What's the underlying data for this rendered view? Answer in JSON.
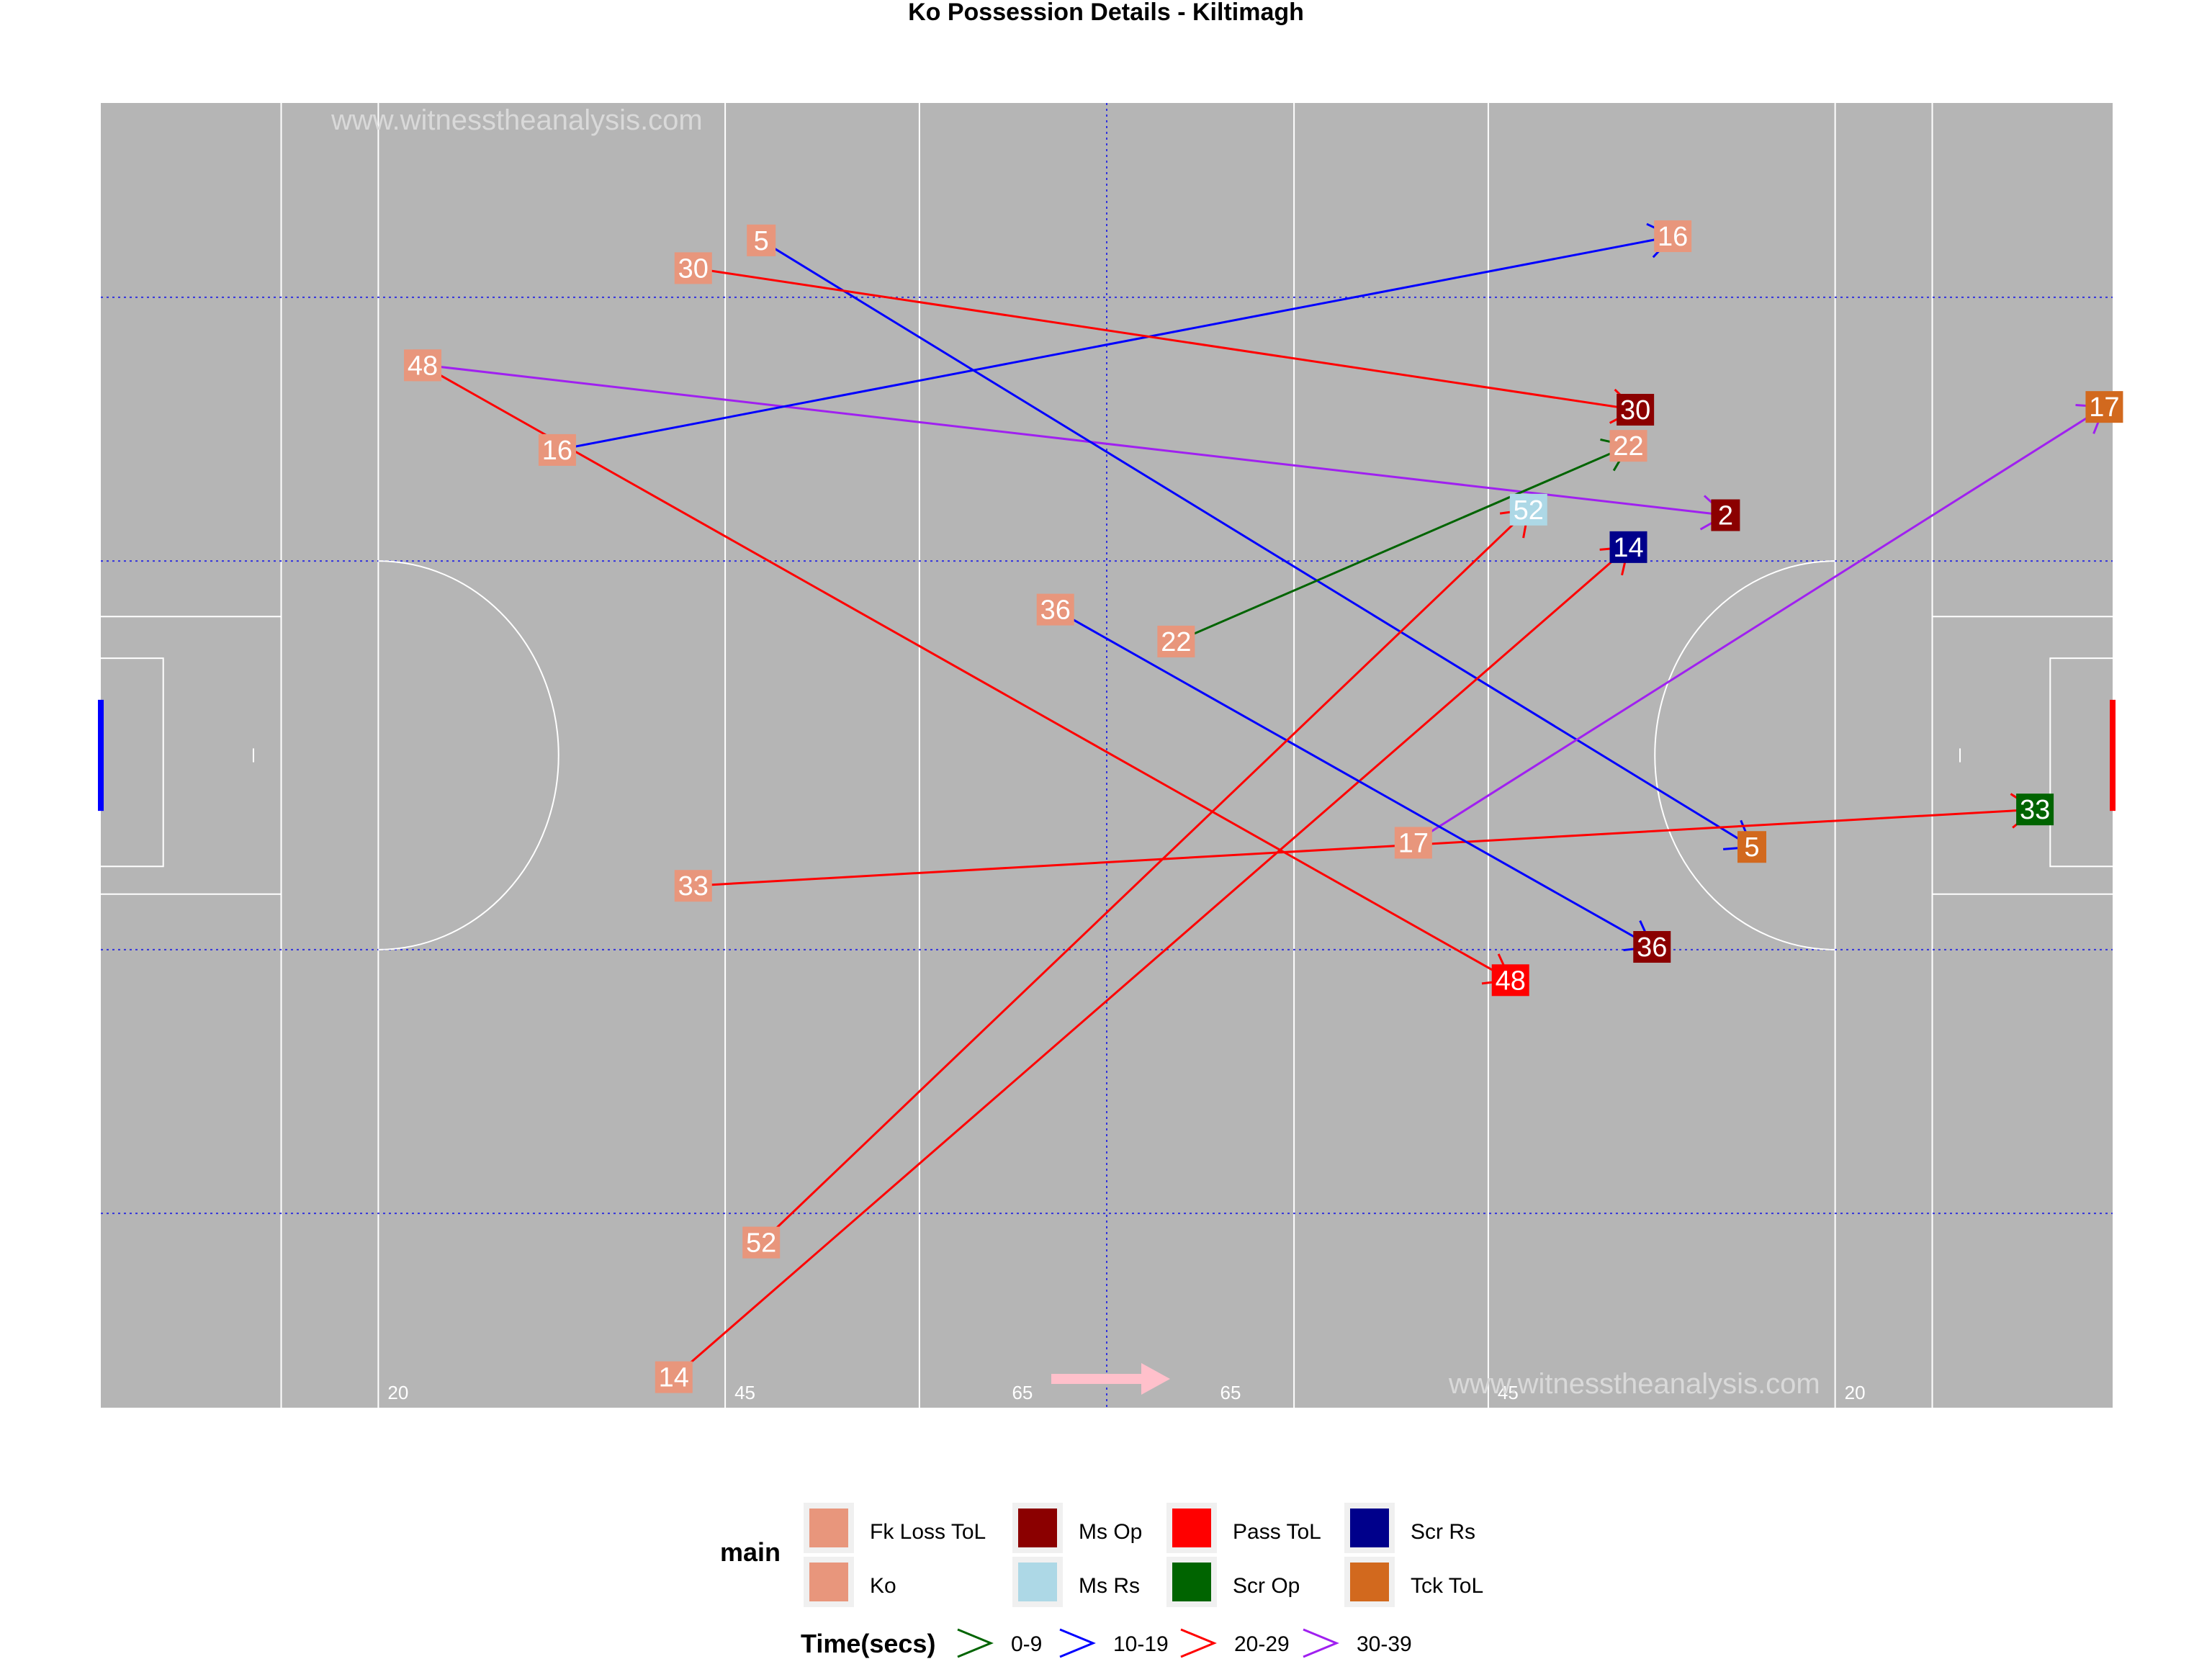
{
  "chart_data": {
    "type": "scatter",
    "title": "Ko Possession Details - Kiltimagh",
    "xlim": [
      0,
      145
    ],
    "ylim": [
      0,
      94
    ],
    "watermark": "www.witnesstheanalysis.com",
    "yard_labels": [
      "20",
      "45",
      "65",
      "65",
      "45",
      "20"
    ],
    "colors": {
      "Fk Loss ToL": "#e8967c",
      "Ko": "#e8967c",
      "Ms Op": "#8b0000",
      "Ms Rs": "#add8e6",
      "Pass ToL": "#ff0000",
      "Scr Op": "#006400",
      "Scr Rs": "#00008b",
      "Tck ToL": "#d2691e"
    },
    "time_colors": {
      "0-9": "#006400",
      "10-19": "#0000ff",
      "20-29": "#ff0000",
      "30-39": "#a020f0"
    },
    "possessions": [
      {
        "id": "2",
        "start": [
          23.5,
          75.1
        ],
        "end": [
          117.1,
          64.3
        ],
        "start_main": "Ko",
        "end_main": "Ms Op",
        "time": "30-39"
      },
      {
        "id": "5",
        "start": [
          47.6,
          84.1
        ],
        "end": [
          119.0,
          40.4
        ],
        "start_main": "Ko",
        "end_main": "Tck ToL",
        "time": "10-19"
      },
      {
        "id": "14",
        "start": [
          41.3,
          2.2
        ],
        "end": [
          110.1,
          62.0
        ],
        "start_main": "Ko",
        "end_main": "Scr Rs",
        "time": "20-29"
      },
      {
        "id": "16",
        "start": [
          32.9,
          69.0
        ],
        "end": [
          113.3,
          84.4
        ],
        "start_main": "Ko",
        "end_main": "Ko",
        "time": "10-19"
      },
      {
        "id": "17",
        "start": [
          94.6,
          40.7
        ],
        "end": [
          144.4,
          72.1
        ],
        "start_main": "Ko",
        "end_main": "Tck ToL",
        "time": "30-39"
      },
      {
        "id": "22",
        "start": [
          77.5,
          55.2
        ],
        "end": [
          110.1,
          69.3
        ],
        "start_main": "Ko",
        "end_main": "Ko",
        "time": "0-9"
      },
      {
        "id": "30",
        "start": [
          42.7,
          82.1
        ],
        "end": [
          110.6,
          71.9
        ],
        "start_main": "Ko",
        "end_main": "Ms Op",
        "time": "20-29"
      },
      {
        "id": "33",
        "start": [
          42.7,
          37.6
        ],
        "end": [
          139.4,
          43.1
        ],
        "start_main": "Ko",
        "end_main": "Scr Op",
        "time": "20-29"
      },
      {
        "id": "36",
        "start": [
          68.8,
          57.5
        ],
        "end": [
          111.8,
          33.2
        ],
        "start_main": "Ko",
        "end_main": "Ms Op",
        "time": "10-19"
      },
      {
        "id": "48",
        "start": [
          23.2,
          75.1
        ],
        "end": [
          101.6,
          30.8
        ],
        "start_main": "Fk Loss ToL",
        "end_main": "Pass ToL",
        "time": "20-29"
      },
      {
        "id": "52",
        "start": [
          47.6,
          11.9
        ],
        "end": [
          102.9,
          64.7
        ],
        "start_main": "Ko",
        "end_main": "Ms Rs",
        "time": "20-29"
      }
    ],
    "legend": {
      "main_title": "main",
      "main_items": [
        "Fk Loss ToL",
        "Ko",
        "Ms Op",
        "Ms Rs",
        "Pass ToL",
        "Scr Op",
        "Scr Rs",
        "Tck ToL"
      ],
      "time_title": "Time(secs)",
      "time_items": [
        "0-9",
        "10-19",
        "20-29",
        "30-39"
      ]
    }
  }
}
